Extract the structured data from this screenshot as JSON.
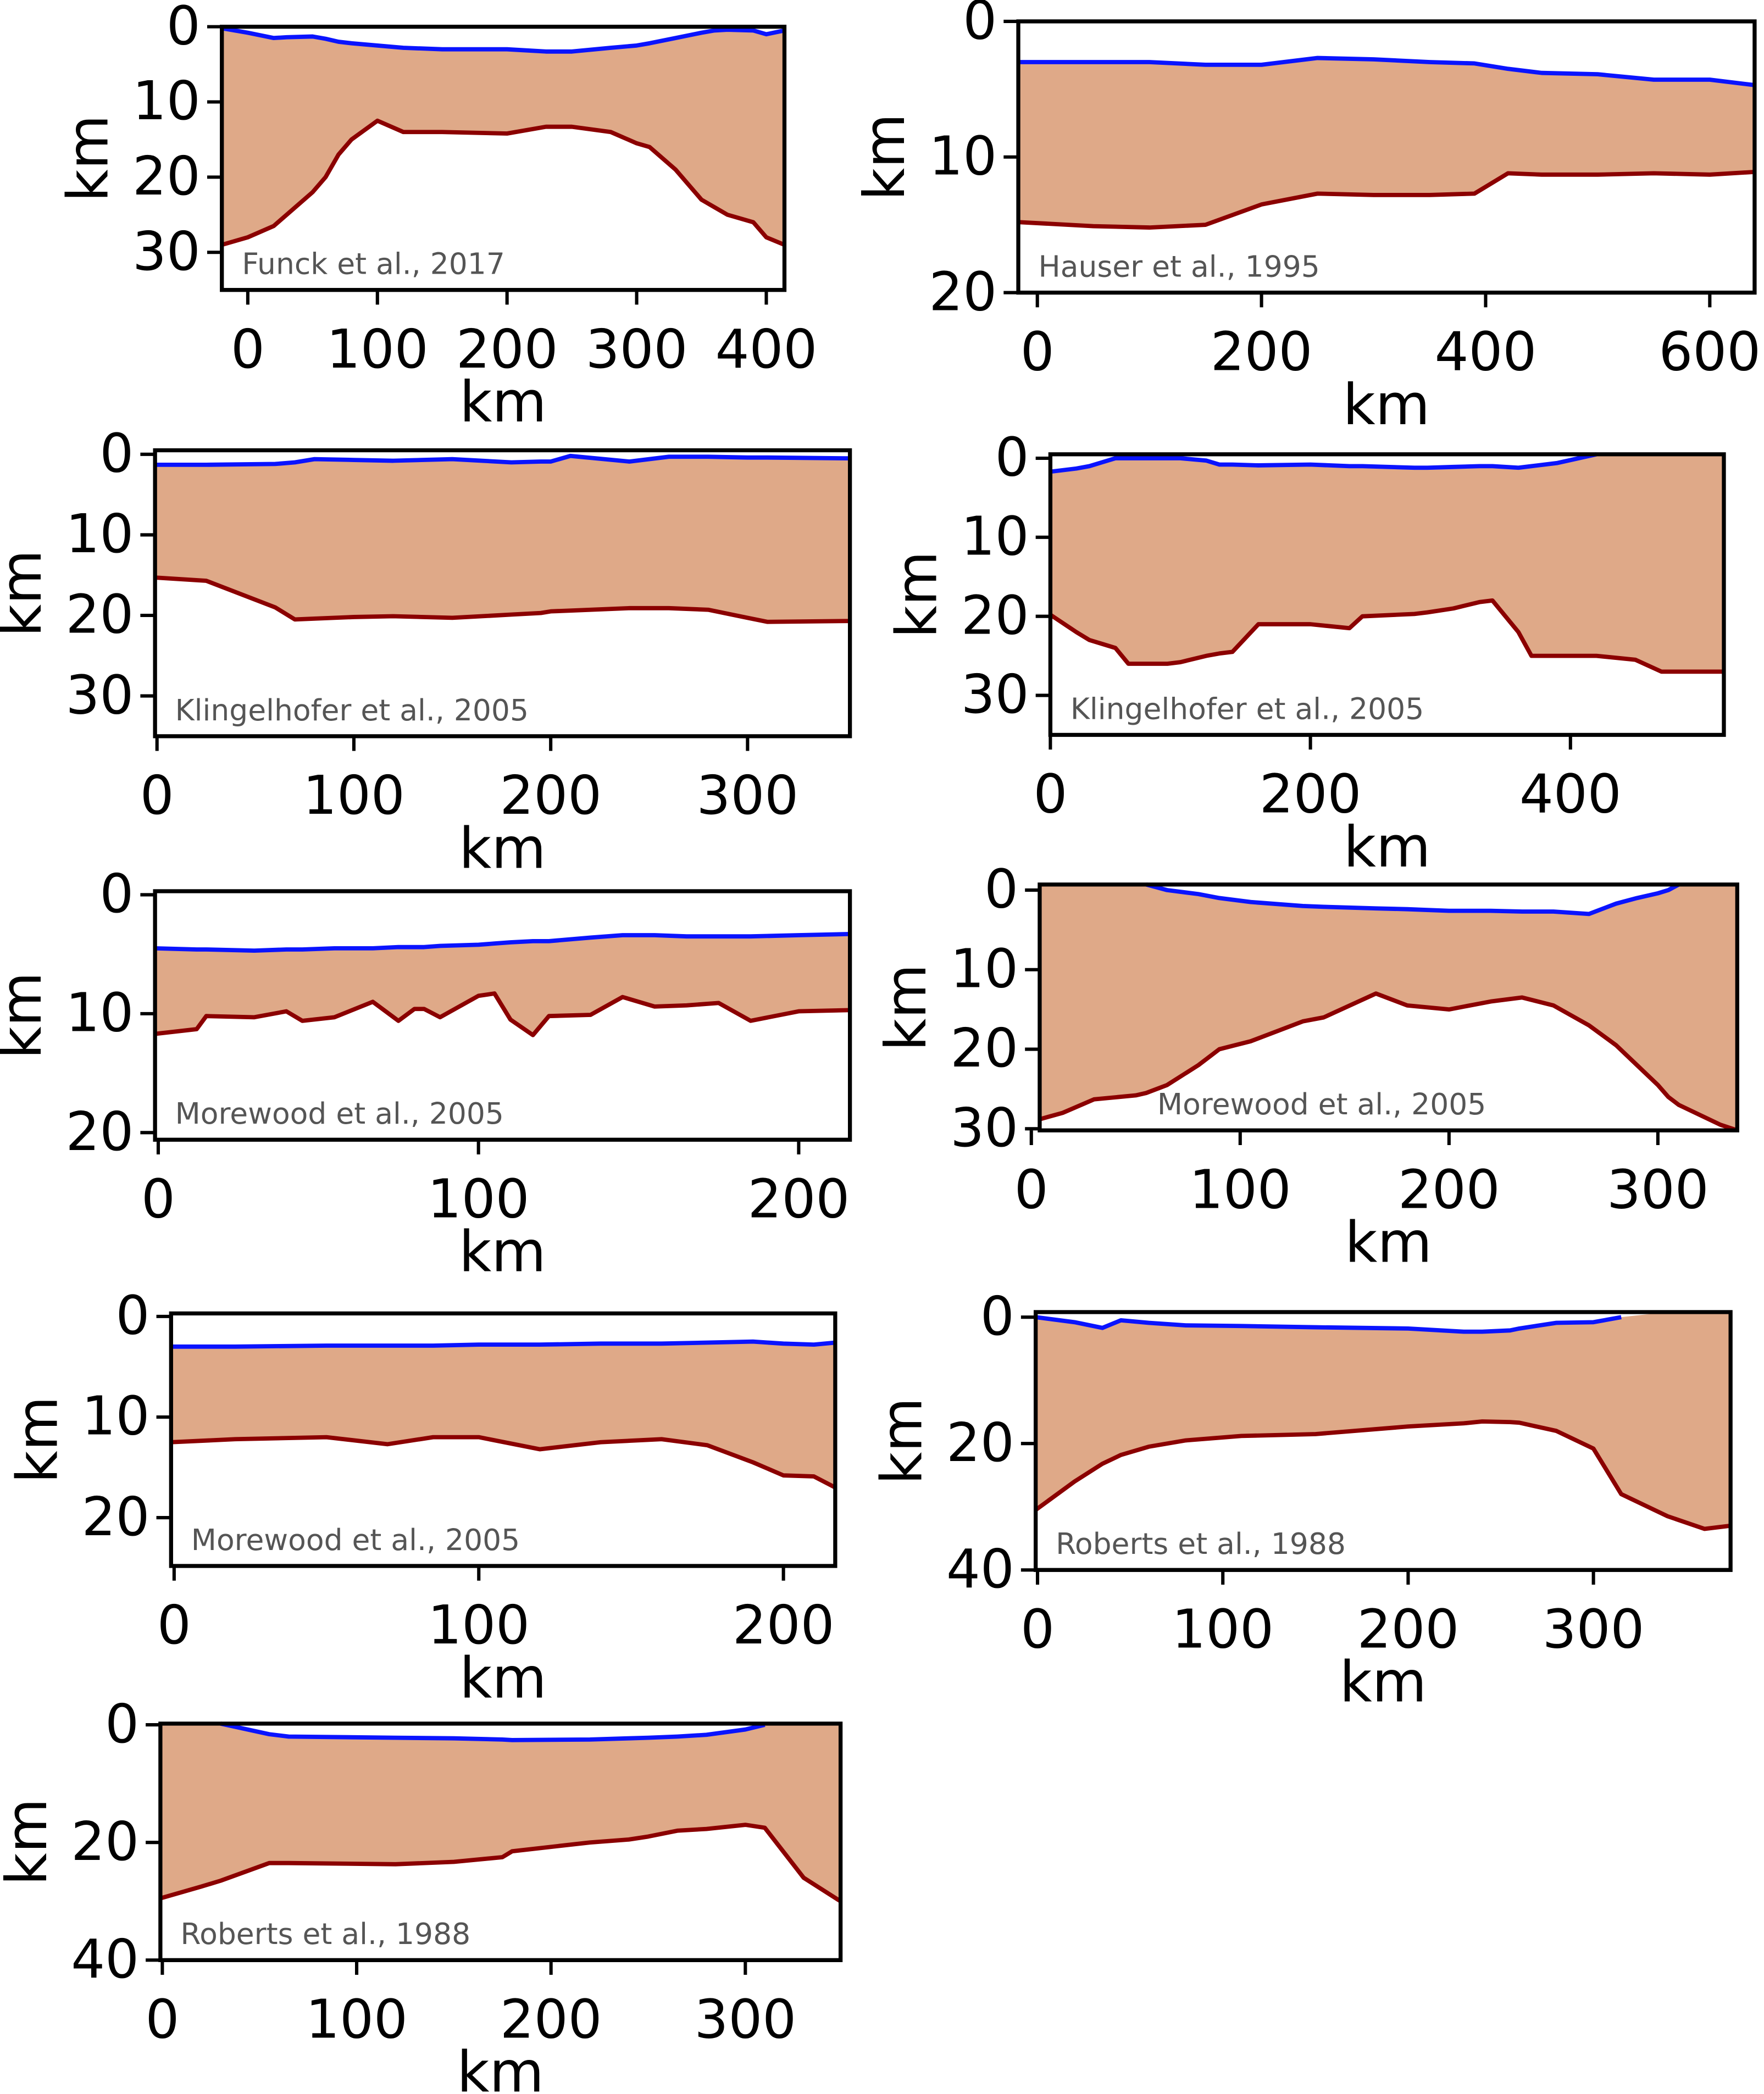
{
  "chart_data": [
    {
      "type": "area",
      "annotation": "Funck et al., 2017",
      "xlabel": "km",
      "ylabel": "km",
      "fill_color": "#dfa988",
      "x": [
        -20,
        0,
        20,
        30,
        50,
        60,
        70,
        80,
        100,
        120,
        150,
        200,
        230,
        250,
        280,
        300,
        310,
        330,
        350,
        360,
        370,
        390,
        400,
        414
      ],
      "series": [
        {
          "color": "#0a14ff",
          "values": [
            0.2,
            0.8,
            1.5,
            1.4,
            1.3,
            1.6,
            2,
            2.2,
            2.5,
            2.8,
            3,
            3,
            3.3,
            3.3,
            2.8,
            2.5,
            2.2,
            1.5,
            0.8,
            0.5,
            0.4,
            0.5,
            1,
            0.5
          ]
        },
        {
          "color": "#8b0000",
          "values": [
            29,
            28,
            26.5,
            25,
            22,
            20,
            17,
            15,
            12.5,
            14,
            14,
            14.2,
            13.3,
            13.3,
            14,
            15.5,
            16,
            19,
            23,
            24,
            25,
            26,
            28,
            29
          ]
        }
      ],
      "xlim": [
        -20,
        414
      ],
      "ylim": [
        0,
        35
      ],
      "xticks": [
        0,
        100,
        200,
        300,
        400
      ],
      "yticks": [
        0,
        10,
        20,
        30
      ]
    },
    {
      "type": "area",
      "annotation": "Hauser et al., 1995",
      "xlabel": "km",
      "ylabel": "km",
      "fill_color": "#dfa988",
      "x": [
        -17,
        50,
        100,
        150,
        200,
        250,
        300,
        350,
        390,
        420,
        450,
        500,
        550,
        600,
        640
      ],
      "series": [
        {
          "color": "#0a14ff",
          "values": [
            3,
            3,
            3,
            3.2,
            3.2,
            2.7,
            2.8,
            3,
            3.1,
            3.5,
            3.8,
            3.9,
            4.3,
            4.3,
            4.7
          ]
        },
        {
          "color": "#8b0000",
          "values": [
            14.8,
            15.1,
            15.2,
            15,
            13.5,
            12.7,
            12.8,
            12.8,
            12.7,
            11.2,
            11.3,
            11.3,
            11.2,
            11.3,
            11.1
          ]
        }
      ],
      "xlim": [
        -17,
        640
      ],
      "ylim": [
        0,
        20
      ],
      "xticks": [
        0,
        200,
        400,
        600
      ],
      "yticks": [
        0,
        10,
        20
      ]
    },
    {
      "type": "area",
      "annotation": "Klingelhofer et al., 2005",
      "xlabel": "km",
      "ylabel": "km",
      "fill_color": "#dfa988",
      "x": [
        -1,
        25,
        60,
        70,
        80,
        100,
        120,
        150,
        180,
        195,
        200,
        210,
        240,
        260,
        280,
        300,
        310,
        350,
        352
      ],
      "series": [
        {
          "color": "#0a14ff",
          "values": [
            1.3,
            1.3,
            1.2,
            1,
            0.6,
            0.7,
            0.8,
            0.6,
            1,
            0.9,
            0.9,
            0.2,
            0.9,
            0.3,
            0.3,
            0.4,
            0.4,
            0.5,
            0.5
          ]
        },
        {
          "color": "#8b0000",
          "values": [
            15.3,
            15.7,
            19,
            20.5,
            20.4,
            20.2,
            20.1,
            20.3,
            19.9,
            19.7,
            19.5,
            19.4,
            19.1,
            19.1,
            19.3,
            20.3,
            20.8,
            20.7,
            20.7
          ]
        }
      ],
      "xlim": [
        -1,
        352
      ],
      "ylim": [
        -0.5,
        35
      ],
      "xticks": [
        0,
        100,
        200,
        300
      ],
      "yticks": [
        0,
        10,
        20,
        30
      ]
    },
    {
      "type": "area",
      "annotation": "Klingelhofer et al., 2005",
      "xlabel": "km",
      "ylabel": "km",
      "fill_color": "#dfa988",
      "x": [
        0,
        20,
        30,
        40,
        50,
        60,
        90,
        100,
        120,
        130,
        140,
        160,
        200,
        230,
        240,
        280,
        290,
        310,
        330,
        340,
        360,
        370,
        390,
        420,
        450,
        470,
        518
      ],
      "series": [
        {
          "color": "#0a14ff",
          "values": [
            1.7,
            1.3,
            1,
            0.5,
            0,
            0,
            0,
            0,
            0.3,
            0.8,
            0.8,
            0.9,
            0.8,
            1,
            1,
            1.2,
            1.2,
            1.1,
            1,
            1,
            1.2,
            1,
            0.6,
            -0.5,
            null,
            null,
            null
          ]
        },
        {
          "color": "#8b0000",
          "values": [
            19.8,
            22,
            23,
            23.5,
            24,
            26,
            26,
            25.8,
            25,
            24.7,
            24.5,
            21,
            21,
            21.5,
            20,
            19.7,
            19.5,
            19,
            18.2,
            18,
            22,
            25,
            25,
            25,
            25.5,
            27,
            27
          ]
        }
      ],
      "xlim": [
        0,
        518
      ],
      "ylim": [
        -0.5,
        35
      ],
      "xticks": [
        0,
        200,
        400
      ],
      "yticks": [
        0,
        10,
        20,
        30
      ]
    },
    {
      "type": "area",
      "annotation": "Morewood et al., 2005",
      "xlabel": "km",
      "ylabel": "km",
      "fill_color": "#dfa988",
      "x": [
        -1,
        12,
        15,
        30,
        40,
        45,
        55,
        67,
        75,
        80,
        83,
        88,
        100,
        105,
        110,
        117,
        122,
        135,
        145,
        155,
        165,
        175,
        185,
        200,
        216
      ],
      "series": [
        {
          "color": "#0a14ff",
          "values": [
            4.5,
            4.6,
            4.6,
            4.7,
            4.6,
            4.6,
            4.5,
            4.5,
            4.4,
            4.4,
            4.4,
            4.3,
            4.2,
            4.1,
            4,
            3.9,
            3.9,
            3.6,
            3.4,
            3.4,
            3.5,
            3.5,
            3.5,
            3.4,
            3.3
          ]
        },
        {
          "color": "#8b0000",
          "values": [
            11.7,
            11.3,
            10.2,
            10.3,
            9.8,
            10.6,
            10.3,
            9,
            10.6,
            9.6,
            9.6,
            10.3,
            8.5,
            8.3,
            10.5,
            11.8,
            10.2,
            10.1,
            8.6,
            9.4,
            9.3,
            9.1,
            10.6,
            9.8,
            9.7
          ]
        }
      ],
      "xlim": [
        -1,
        216
      ],
      "ylim": [
        -0.3,
        20.6
      ],
      "xticks": [
        0,
        100,
        200
      ],
      "yticks": [
        0,
        10,
        20
      ]
    },
    {
      "type": "area",
      "annotation": "Morewood et al., 2005",
      "xlabel": "km",
      "ylabel": "km",
      "fill_color": "#dfa988",
      "x": [
        4,
        15,
        30,
        50,
        55,
        65,
        80,
        90,
        105,
        120,
        130,
        140,
        165,
        180,
        200,
        220,
        235,
        250,
        267,
        280,
        290,
        300,
        305,
        310,
        330,
        338
      ],
      "series": [
        {
          "color": "#0a14ff",
          "values": [
            null,
            null,
            null,
            null,
            -0.7,
            0,
            0.5,
            1,
            1.5,
            1.8,
            2,
            2.1,
            2.3,
            2.4,
            2.6,
            2.6,
            2.7,
            2.7,
            3,
            1.7,
            1,
            0.4,
            0,
            -0.7,
            null,
            null
          ]
        },
        {
          "color": "#8b0000",
          "values": [
            28.8,
            28,
            26.3,
            25.8,
            25.5,
            24.5,
            22,
            20,
            19,
            17.5,
            16.5,
            16,
            13,
            14.5,
            15,
            14,
            13.5,
            14.5,
            17,
            19.5,
            22,
            24.5,
            26,
            27,
            29.5,
            30.2
          ]
        }
      ],
      "xlim": [
        4,
        338
      ],
      "ylim": [
        -0.7,
        30.2
      ],
      "xticks": [
        0,
        100,
        200,
        300
      ],
      "yticks": [
        0,
        10,
        20,
        30
      ]
    },
    {
      "type": "area",
      "annotation": "Morewood et al., 2005",
      "xlabel": "km",
      "ylabel": "km",
      "fill_color": "#dfa988",
      "x": [
        -1,
        20,
        50,
        70,
        85,
        100,
        120,
        140,
        160,
        175,
        190,
        200,
        210,
        217
      ],
      "series": [
        {
          "color": "#0a14ff",
          "values": [
            3,
            3,
            2.9,
            2.9,
            2.9,
            2.8,
            2.8,
            2.7,
            2.7,
            2.6,
            2.5,
            2.7,
            2.8,
            2.6
          ]
        },
        {
          "color": "#8b0000",
          "values": [
            12.5,
            12.2,
            12,
            12.7,
            12,
            12,
            13.2,
            12.5,
            12.2,
            12.8,
            14.5,
            15.8,
            15.9,
            17
          ]
        }
      ],
      "xlim": [
        -1,
        217
      ],
      "ylim": [
        -0.3,
        24.8
      ],
      "xticks": [
        0,
        100,
        200
      ],
      "yticks": [
        0,
        10,
        20
      ]
    },
    {
      "type": "area",
      "annotation": "Roberts et al., 1988",
      "xlabel": "km",
      "ylabel": "km",
      "fill_color": "#dfa988",
      "x": [
        -1,
        20,
        35,
        40,
        45,
        60,
        80,
        110,
        150,
        200,
        230,
        240,
        255,
        260,
        280,
        300,
        315,
        340,
        360,
        374
      ],
      "series": [
        {
          "color": "#0a14ff",
          "values": [
            0,
            0.8,
            1.7,
            1.1,
            0.5,
            0.9,
            1.3,
            1.4,
            1.6,
            1.8,
            2.3,
            2.3,
            2.1,
            1.8,
            0.9,
            0.8,
            0,
            null,
            null,
            null
          ]
        },
        {
          "color": "#8b0000",
          "values": [
            30.5,
            26,
            23.2,
            22.5,
            21.8,
            20.5,
            19.5,
            18.8,
            18.5,
            17.3,
            16.8,
            16.5,
            16.6,
            16.7,
            18,
            20.8,
            28,
            31.5,
            33.5,
            33
          ]
        }
      ],
      "xlim": [
        -1,
        374
      ],
      "ylim": [
        -0.8,
        40
      ],
      "xticks": [
        0,
        100,
        200,
        300
      ],
      "yticks": [
        0,
        20,
        40
      ]
    },
    {
      "type": "area",
      "annotation": "Roberts et al., 1988",
      "xlabel": "km",
      "ylabel": "km",
      "fill_color": "#dfa988",
      "x": [
        -1,
        20,
        30,
        55,
        65,
        120,
        150,
        175,
        180,
        220,
        240,
        250,
        265,
        280,
        300,
        310,
        330,
        349
      ],
      "series": [
        {
          "color": "#0a14ff",
          "values": [
            null,
            null,
            -0.2,
            1.6,
            2,
            2.2,
            2.3,
            2.5,
            2.6,
            2.5,
            2.3,
            2.2,
            2,
            1.7,
            0.8,
            0,
            null,
            null
          ]
        },
        {
          "color": "#8b0000",
          "values": [
            29.5,
            27.5,
            26.5,
            23.5,
            23.5,
            23.7,
            23.3,
            22.5,
            21.5,
            20,
            19.5,
            19,
            18,
            17.7,
            17,
            17.5,
            26,
            30
          ]
        }
      ],
      "xlim": [
        -1,
        349
      ],
      "ylim": [
        -0.2,
        40
      ],
      "xticks": [
        0,
        100,
        200,
        300
      ],
      "yticks": [
        0,
        20,
        40
      ]
    }
  ]
}
